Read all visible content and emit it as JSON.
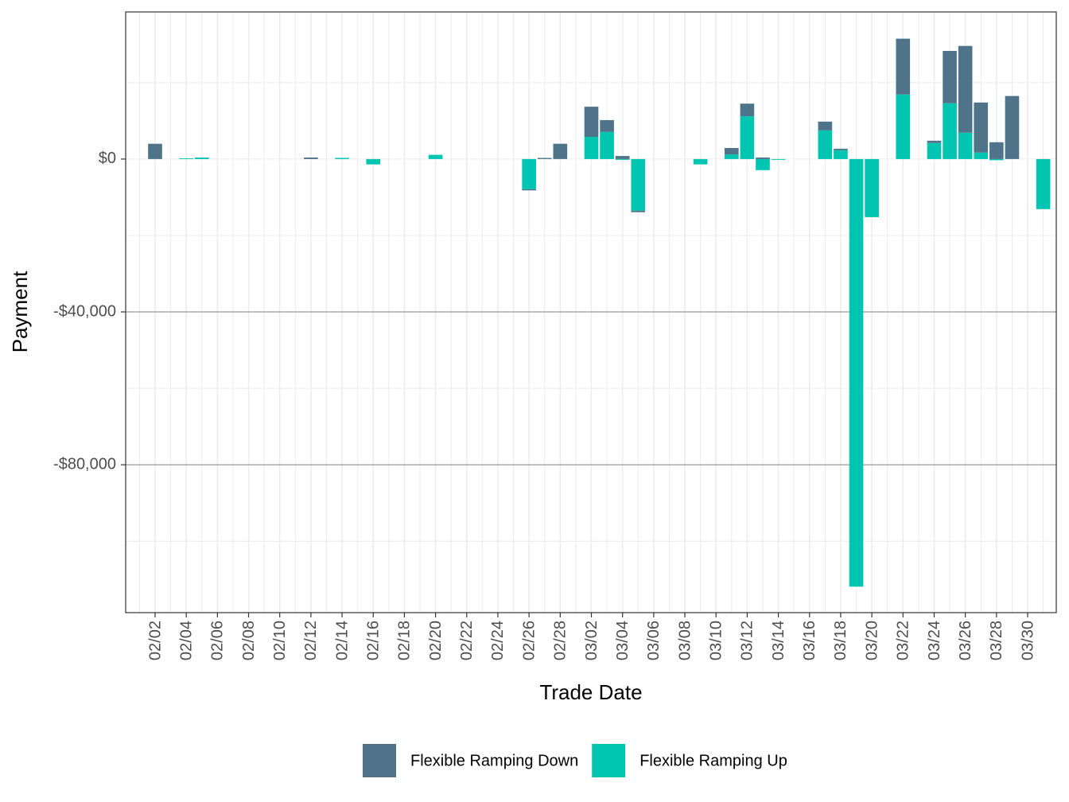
{
  "chart_data": {
    "type": "stacked_bar",
    "x_label": "Trade Date",
    "y_label": "Payment",
    "categories": [
      null,
      "02/02",
      null,
      "02/04",
      null,
      "02/06",
      null,
      "02/08",
      null,
      "02/10",
      null,
      "02/12",
      null,
      "02/14",
      null,
      "02/16",
      null,
      "02/18",
      null,
      "02/20",
      null,
      "02/22",
      null,
      "02/24",
      null,
      "02/26",
      null,
      "02/28",
      null,
      "03/02",
      null,
      "03/04",
      null,
      "03/06",
      null,
      "03/08",
      null,
      "03/10",
      null,
      "03/12",
      null,
      "03/14",
      null,
      "03/16",
      null,
      "03/18",
      null,
      "03/20",
      null,
      "03/22",
      null,
      "03/24",
      null,
      "03/26",
      null,
      "03/28",
      null,
      "03/30",
      null
    ],
    "series": [
      {
        "name": "Flexible Ramping Down",
        "color": "#4f7489",
        "values": [
          0,
          4000,
          0,
          0,
          0,
          0,
          0,
          0,
          0,
          0,
          0,
          400,
          0,
          0,
          0,
          0,
          0,
          0,
          0,
          0,
          0,
          0,
          0,
          0,
          0,
          -300,
          300,
          4000,
          0,
          7900,
          3100,
          800,
          -400,
          0,
          0,
          0,
          0,
          0,
          1700,
          3300,
          400,
          0,
          0,
          0,
          2300,
          400,
          0,
          0,
          0,
          14600,
          0,
          600,
          13700,
          22700,
          13100,
          4400,
          16500,
          0,
          0
        ]
      },
      {
        "name": "Flexible Ramping Up",
        "color": "#00c5b0",
        "values": [
          0,
          0,
          0,
          200,
          400,
          0,
          0,
          0,
          0,
          0,
          0,
          0,
          0,
          300,
          0,
          -1400,
          0,
          0,
          0,
          1100,
          0,
          0,
          0,
          0,
          0,
          -7900,
          0,
          0,
          0,
          5800,
          7100,
          -200,
          -13500,
          0,
          0,
          0,
          -1400,
          0,
          1200,
          11200,
          -2900,
          -200,
          0,
          0,
          7500,
          2300,
          -111900,
          -15200,
          0,
          16900,
          0,
          4200,
          14600,
          6900,
          1700,
          -300,
          0,
          0,
          -13100
        ]
      }
    ],
    "stack_order": [
      "Flexible Ramping Up",
      "Flexible Ramping Down"
    ],
    "ylim": [
      -118700,
      38500
    ],
    "yticks": [
      {
        "value": 0,
        "label": "$0"
      },
      {
        "value": -40000,
        "label": "-$40,000"
      },
      {
        "value": -80000,
        "label": "-$80,000"
      }
    ],
    "yminor": [
      20000,
      -20000,
      -60000,
      -100000
    ],
    "grid": true,
    "legend": "bottom"
  }
}
